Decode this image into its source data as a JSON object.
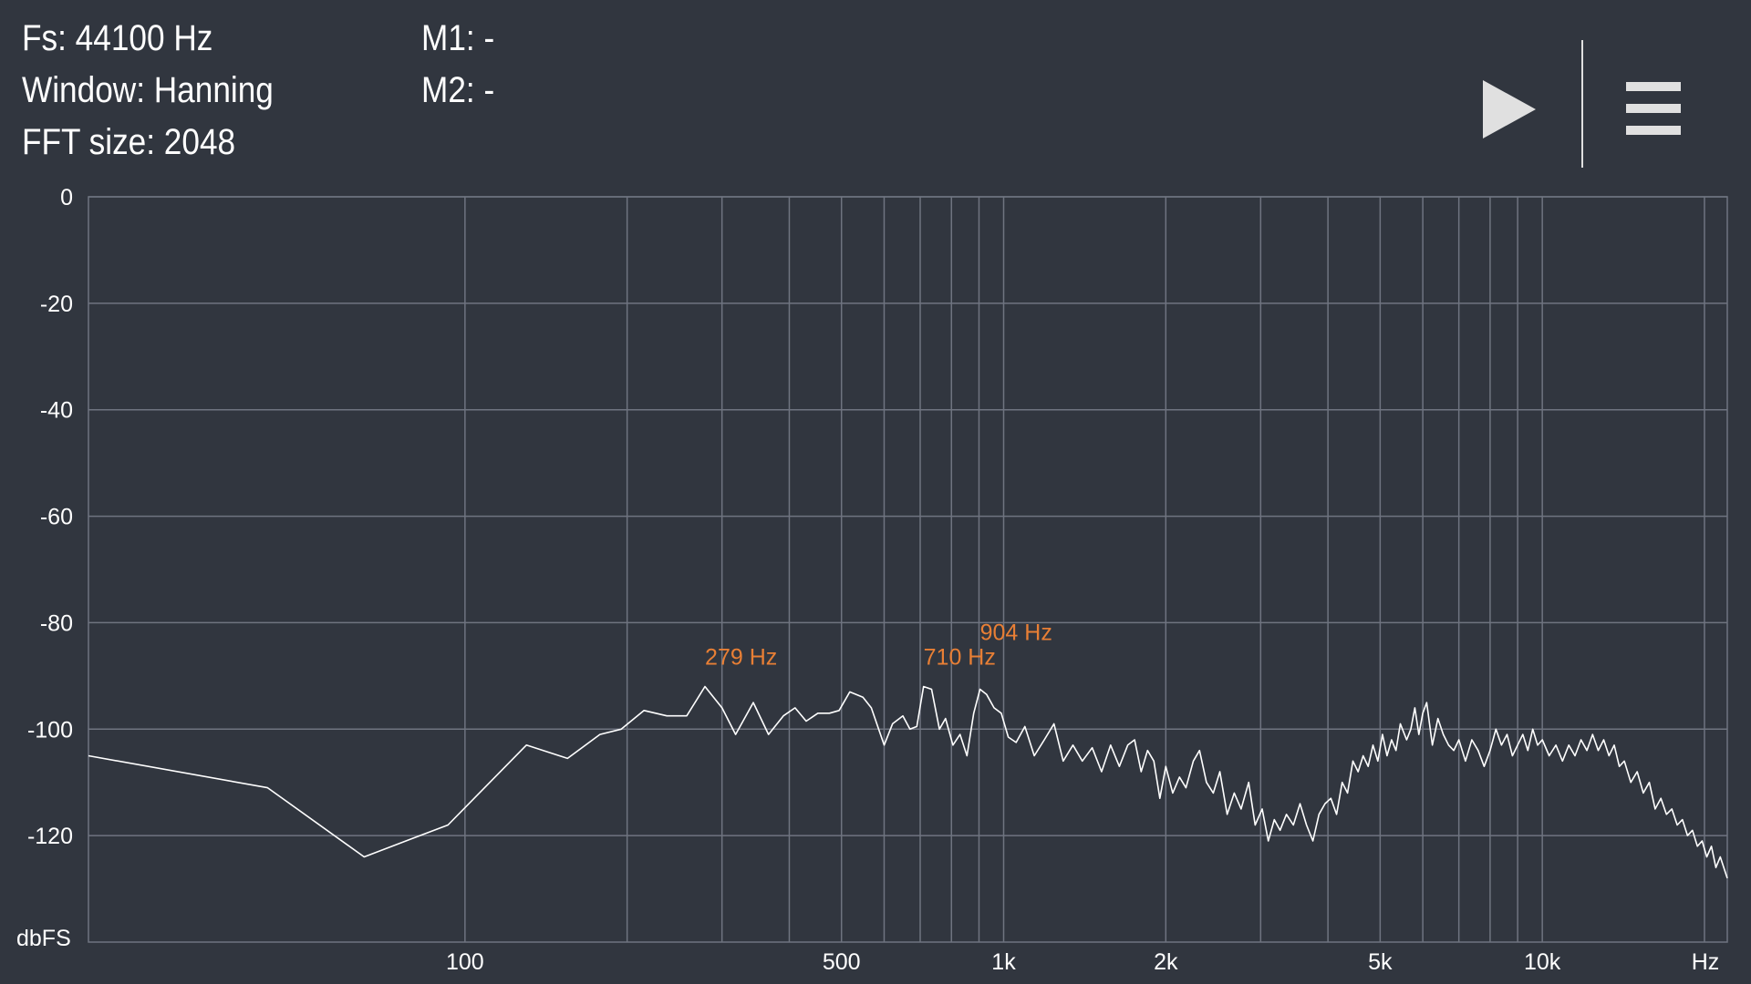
{
  "info": {
    "fs": "Fs: 44100 Hz",
    "window": "Window: Hanning",
    "fft_size": "FFT size: 2048",
    "m1": "M1: -",
    "m2": "M2: -"
  },
  "toolbar": {
    "play_icon": "play-icon",
    "menu_icon": "menu-icon"
  },
  "colors": {
    "background": "#31363f",
    "grid": "#6f7480",
    "trace": "#ffffff",
    "peak_label": "#e87f35",
    "icon": "#e0e0e0"
  },
  "chart_data": {
    "type": "line",
    "xscale": "log",
    "xlim": [
      20,
      22050
    ],
    "ylim": [
      -140,
      0
    ],
    "xlabel": "Hz",
    "ylabel": "dbFS",
    "y_ticks": [
      {
        "value": 0,
        "label": "0"
      },
      {
        "value": -20,
        "label": "-20"
      },
      {
        "value": -40,
        "label": "-40"
      },
      {
        "value": -60,
        "label": "-60"
      },
      {
        "value": -80,
        "label": "-80"
      },
      {
        "value": -100,
        "label": "-100"
      },
      {
        "value": -120,
        "label": "-120"
      }
    ],
    "x_gridlines": [
      100,
      200,
      300,
      400,
      500,
      600,
      700,
      800,
      900,
      1000,
      2000,
      3000,
      4000,
      5000,
      6000,
      7000,
      8000,
      9000,
      10000,
      20000
    ],
    "x_tick_labels": [
      {
        "value": 100,
        "label": "100"
      },
      {
        "value": 500,
        "label": "500"
      },
      {
        "value": 1000,
        "label": "1k"
      },
      {
        "value": 2000,
        "label": "2k"
      },
      {
        "value": 5000,
        "label": "5k"
      },
      {
        "value": 10000,
        "label": "10k"
      }
    ],
    "peaks": [
      {
        "freq": 279,
        "db": -92,
        "label": "279 Hz"
      },
      {
        "freq": 710,
        "db": -92,
        "label": "710 Hz"
      },
      {
        "freq": 904,
        "db": -92.5,
        "label": "904 Hz"
      }
    ],
    "series": [
      {
        "points": [
          [
            20,
            -105
          ],
          [
            43,
            -111
          ],
          [
            65,
            -124
          ],
          [
            80,
            -120.5
          ],
          [
            93,
            -118
          ],
          [
            130,
            -103
          ],
          [
            155,
            -105.5
          ],
          [
            178,
            -101
          ],
          [
            195,
            -100
          ],
          [
            215,
            -96.5
          ],
          [
            237,
            -97.5
          ],
          [
            258,
            -97.5
          ],
          [
            279,
            -92
          ],
          [
            300,
            -96
          ],
          [
            318,
            -101
          ],
          [
            343,
            -95
          ],
          [
            366,
            -101
          ],
          [
            390,
            -97.5
          ],
          [
            410,
            -96
          ],
          [
            430,
            -98.5
          ],
          [
            452,
            -97
          ],
          [
            475,
            -97
          ],
          [
            495,
            -96.5
          ],
          [
            518,
            -93
          ],
          [
            548,
            -94
          ],
          [
            568,
            -96
          ],
          [
            600,
            -103
          ],
          [
            622,
            -99
          ],
          [
            650,
            -97.5
          ],
          [
            670,
            -100
          ],
          [
            690,
            -99.5
          ],
          [
            710,
            -92
          ],
          [
            735,
            -92.5
          ],
          [
            760,
            -100
          ],
          [
            780,
            -98
          ],
          [
            805,
            -103
          ],
          [
            830,
            -101
          ],
          [
            855,
            -105
          ],
          [
            880,
            -97
          ],
          [
            904,
            -92.5
          ],
          [
            930,
            -93.5
          ],
          [
            960,
            -96
          ],
          [
            990,
            -97
          ],
          [
            1020,
            -101.5
          ],
          [
            1055,
            -102.5
          ],
          [
            1095,
            -99.5
          ],
          [
            1140,
            -105
          ],
          [
            1190,
            -102
          ],
          [
            1240,
            -99
          ],
          [
            1290,
            -106
          ],
          [
            1345,
            -103
          ],
          [
            1400,
            -106
          ],
          [
            1460,
            -103.5
          ],
          [
            1520,
            -108
          ],
          [
            1580,
            -103
          ],
          [
            1640,
            -107
          ],
          [
            1700,
            -103
          ],
          [
            1750,
            -102
          ],
          [
            1800,
            -108
          ],
          [
            1850,
            -104
          ],
          [
            1900,
            -106
          ],
          [
            1950,
            -113
          ],
          [
            2000,
            -107
          ],
          [
            2060,
            -112
          ],
          [
            2120,
            -109
          ],
          [
            2180,
            -111
          ],
          [
            2250,
            -106
          ],
          [
            2310,
            -104
          ],
          [
            2380,
            -110
          ],
          [
            2450,
            -112
          ],
          [
            2520,
            -108
          ],
          [
            2600,
            -116
          ],
          [
            2680,
            -112
          ],
          [
            2760,
            -115
          ],
          [
            2850,
            -110
          ],
          [
            2930,
            -118
          ],
          [
            3020,
            -115
          ],
          [
            3100,
            -121
          ],
          [
            3180,
            -117
          ],
          [
            3260,
            -119
          ],
          [
            3350,
            -116
          ],
          [
            3450,
            -118
          ],
          [
            3550,
            -114
          ],
          [
            3650,
            -118
          ],
          [
            3750,
            -121
          ],
          [
            3850,
            -116
          ],
          [
            3950,
            -114
          ],
          [
            4050,
            -113
          ],
          [
            4150,
            -116
          ],
          [
            4250,
            -110
          ],
          [
            4350,
            -112
          ],
          [
            4450,
            -106
          ],
          [
            4550,
            -108
          ],
          [
            4650,
            -105
          ],
          [
            4750,
            -107
          ],
          [
            4850,
            -103
          ],
          [
            4950,
            -106
          ],
          [
            5050,
            -101
          ],
          [
            5150,
            -105
          ],
          [
            5250,
            -102
          ],
          [
            5350,
            -104
          ],
          [
            5450,
            -99
          ],
          [
            5600,
            -102
          ],
          [
            5700,
            -100
          ],
          [
            5800,
            -96
          ],
          [
            5900,
            -101
          ],
          [
            6000,
            -97
          ],
          [
            6100,
            -95
          ],
          [
            6250,
            -103
          ],
          [
            6400,
            -98
          ],
          [
            6550,
            -101
          ],
          [
            6700,
            -103
          ],
          [
            6850,
            -104
          ],
          [
            7000,
            -102
          ],
          [
            7200,
            -106
          ],
          [
            7400,
            -102
          ],
          [
            7600,
            -104
          ],
          [
            7800,
            -107
          ],
          [
            8000,
            -104
          ],
          [
            8200,
            -100
          ],
          [
            8400,
            -103
          ],
          [
            8600,
            -101
          ],
          [
            8800,
            -105
          ],
          [
            9000,
            -103
          ],
          [
            9200,
            -101
          ],
          [
            9400,
            -104
          ],
          [
            9600,
            -100
          ],
          [
            9800,
            -103
          ],
          [
            10000,
            -102
          ],
          [
            10300,
            -105
          ],
          [
            10600,
            -103
          ],
          [
            10900,
            -106
          ],
          [
            11200,
            -103
          ],
          [
            11500,
            -105
          ],
          [
            11800,
            -102
          ],
          [
            12100,
            -104
          ],
          [
            12400,
            -101
          ],
          [
            12700,
            -104
          ],
          [
            13000,
            -102
          ],
          [
            13300,
            -105
          ],
          [
            13600,
            -103
          ],
          [
            13900,
            -107
          ],
          [
            14200,
            -106
          ],
          [
            14600,
            -110
          ],
          [
            15000,
            -108
          ],
          [
            15400,
            -112
          ],
          [
            15800,
            -110
          ],
          [
            16200,
            -115
          ],
          [
            16600,
            -113
          ],
          [
            17000,
            -116
          ],
          [
            17400,
            -115
          ],
          [
            17800,
            -118
          ],
          [
            18200,
            -117
          ],
          [
            18600,
            -120
          ],
          [
            19000,
            -119
          ],
          [
            19400,
            -122
          ],
          [
            19800,
            -121
          ],
          [
            20200,
            -124
          ],
          [
            20600,
            -122
          ],
          [
            21000,
            -126
          ],
          [
            21400,
            -124
          ],
          [
            22050,
            -128
          ]
        ]
      }
    ]
  }
}
